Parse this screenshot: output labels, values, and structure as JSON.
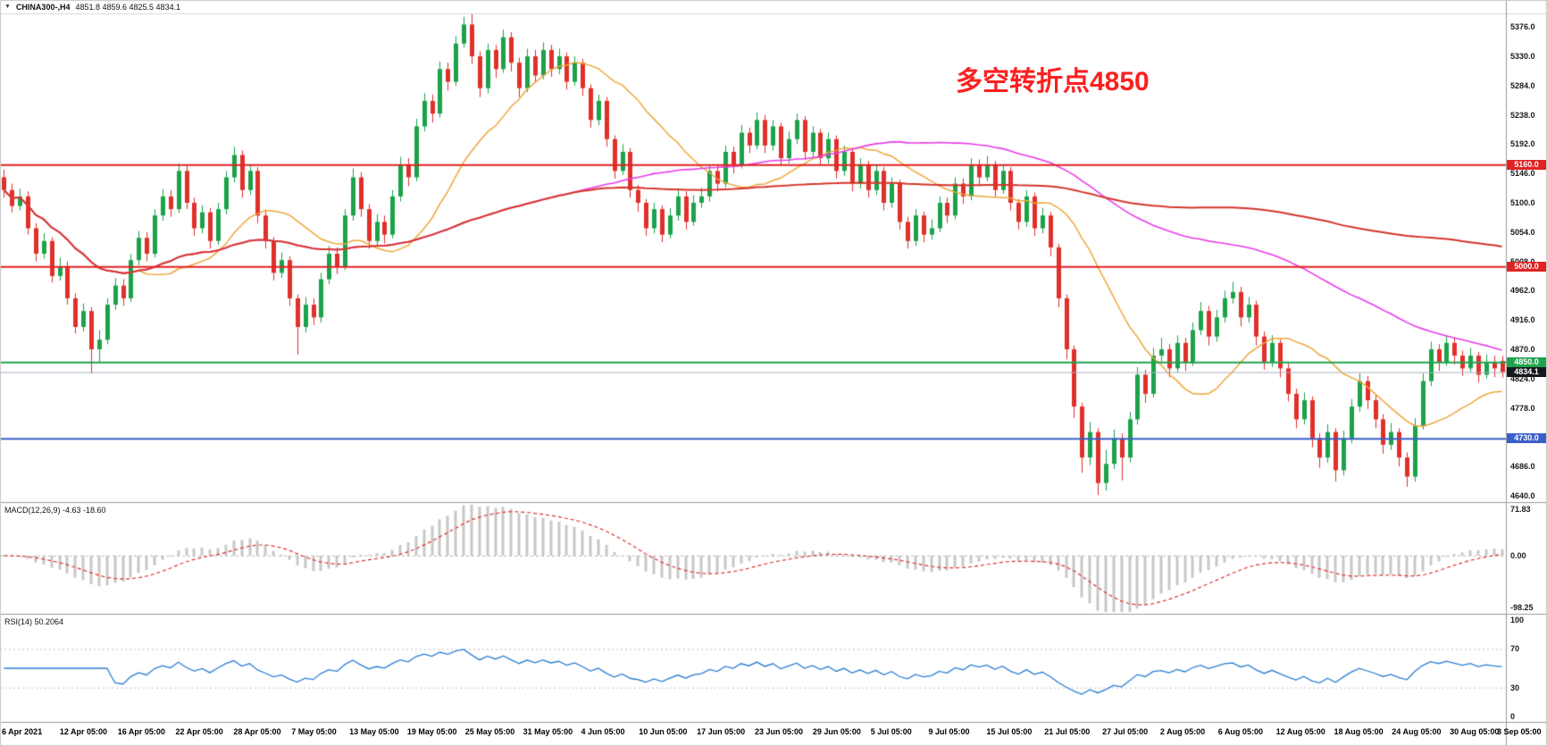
{
  "header": {
    "collapse_icon": "▼",
    "symbol": "CHINA300-,H4",
    "ohlc_text": "4851.8 4859.6 4825.5 4834.1"
  },
  "annotation": {
    "text": "多空转折点4850",
    "color": "#fb2020"
  },
  "chart_data": {
    "type": "candlestick",
    "symbol": "CHINA300-",
    "timeframe": "H4",
    "title": "CHINA300-,H4 4851.8 4859.6 4825.5 4834.1",
    "x_labels": [
      "6 Apr 2021",
      "12 Apr 05:00",
      "16 Apr 05:00",
      "22 Apr 05:00",
      "28 Apr 05:00",
      "7 May 05:00",
      "13 May 05:00",
      "19 May 05:00",
      "25 May 05:00",
      "31 May 05:00",
      "4 Jun 05:00",
      "10 Jun 05:00",
      "17 Jun 05:00",
      "23 Jun 05:00",
      "29 Jun 05:00",
      "5 Jul 05:00",
      "9 Jul 05:00",
      "15 Jul 05:00",
      "21 Jul 05:00",
      "27 Jul 05:00",
      "2 Aug 05:00",
      "6 Aug 05:00",
      "12 Aug 05:00",
      "18 Aug 05:00",
      "24 Aug 05:00",
      "30 Aug 05:00",
      "3 Sep 05:00"
    ],
    "price_axis_ticks": [
      "5376.0",
      "5330.0",
      "5284.0",
      "5238.0",
      "5192.0",
      "5146.0",
      "5100.0",
      "5054.0",
      "5008.0",
      "4962.0",
      "4916.0",
      "4870.0",
      "4824.0",
      "4778.0",
      "4732.0",
      "4686.0",
      "4640.0"
    ],
    "ylim": [
      4630,
      5396
    ],
    "grid": false,
    "up_color": "#1ca24a",
    "down_color": "#e0302a",
    "candles_ohlc": [
      [
        5140,
        5152,
        5108,
        5120
      ],
      [
        5120,
        5130,
        5085,
        5095
      ],
      [
        5095,
        5122,
        5088,
        5110
      ],
      [
        5110,
        5118,
        5050,
        5060
      ],
      [
        5060,
        5068,
        5008,
        5020
      ],
      [
        5020,
        5052,
        5012,
        5040
      ],
      [
        5040,
        5046,
        4975,
        4985
      ],
      [
        4985,
        5014,
        4978,
        5000
      ],
      [
        5000,
        5008,
        4940,
        4950
      ],
      [
        4950,
        4958,
        4895,
        4905
      ],
      [
        4905,
        4942,
        4898,
        4930
      ],
      [
        4930,
        4936,
        4832,
        4870
      ],
      [
        4870,
        4900,
        4850,
        4885
      ],
      [
        4885,
        4950,
        4878,
        4940
      ],
      [
        4940,
        4982,
        4932,
        4970
      ],
      [
        4970,
        4980,
        4938,
        4950
      ],
      [
        4950,
        5020,
        4944,
        5010
      ],
      [
        5010,
        5056,
        5002,
        5045
      ],
      [
        5045,
        5054,
        5008,
        5020
      ],
      [
        5020,
        5090,
        5014,
        5080
      ],
      [
        5080,
        5122,
        5072,
        5110
      ],
      [
        5110,
        5120,
        5078,
        5090
      ],
      [
        5090,
        5162,
        5084,
        5150
      ],
      [
        5150,
        5158,
        5090,
        5100
      ],
      [
        5100,
        5108,
        5048,
        5060
      ],
      [
        5060,
        5096,
        5052,
        5085
      ],
      [
        5085,
        5092,
        5028,
        5040
      ],
      [
        5040,
        5100,
        5034,
        5090
      ],
      [
        5090,
        5150,
        5082,
        5140
      ],
      [
        5140,
        5188,
        5132,
        5175
      ],
      [
        5175,
        5182,
        5108,
        5120
      ],
      [
        5120,
        5160,
        5112,
        5150
      ],
      [
        5150,
        5156,
        5068,
        5080
      ],
      [
        5080,
        5088,
        5028,
        5040
      ],
      [
        5040,
        5046,
        4978,
        4990
      ],
      [
        4990,
        5022,
        4982,
        5010
      ],
      [
        5010,
        5016,
        4938,
        4950
      ],
      [
        4950,
        4956,
        4862,
        4905
      ],
      [
        4905,
        4952,
        4896,
        4940
      ],
      [
        4940,
        4950,
        4908,
        4920
      ],
      [
        4920,
        4990,
        4912,
        4980
      ],
      [
        4980,
        5032,
        4972,
        5020
      ],
      [
        5020,
        5030,
        4988,
        5000
      ],
      [
        5000,
        5090,
        4994,
        5080
      ],
      [
        5080,
        5154,
        5072,
        5140
      ],
      [
        5140,
        5148,
        5078,
        5090
      ],
      [
        5090,
        5098,
        5028,
        5040
      ],
      [
        5040,
        5082,
        5032,
        5070
      ],
      [
        5070,
        5080,
        5036,
        5050
      ],
      [
        5050,
        5120,
        5044,
        5110
      ],
      [
        5110,
        5172,
        5102,
        5160
      ],
      [
        5160,
        5170,
        5126,
        5140
      ],
      [
        5140,
        5232,
        5134,
        5220
      ],
      [
        5220,
        5272,
        5212,
        5260
      ],
      [
        5260,
        5270,
        5226,
        5240
      ],
      [
        5240,
        5322,
        5234,
        5310
      ],
      [
        5310,
        5320,
        5276,
        5290
      ],
      [
        5290,
        5362,
        5284,
        5350
      ],
      [
        5350,
        5392,
        5344,
        5380
      ],
      [
        5380,
        5396,
        5318,
        5330
      ],
      [
        5330,
        5338,
        5266,
        5280
      ],
      [
        5280,
        5350,
        5272,
        5340
      ],
      [
        5340,
        5348,
        5296,
        5310
      ],
      [
        5310,
        5372,
        5304,
        5360
      ],
      [
        5360,
        5368,
        5306,
        5320
      ],
      [
        5320,
        5328,
        5266,
        5280
      ],
      [
        5280,
        5342,
        5274,
        5330
      ],
      [
        5330,
        5340,
        5288,
        5300
      ],
      [
        5300,
        5352,
        5294,
        5340
      ],
      [
        5340,
        5348,
        5298,
        5310
      ],
      [
        5310,
        5342,
        5302,
        5330
      ],
      [
        5330,
        5336,
        5278,
        5290
      ],
      [
        5290,
        5330,
        5284,
        5320
      ],
      [
        5320,
        5326,
        5268,
        5280
      ],
      [
        5280,
        5286,
        5218,
        5230
      ],
      [
        5230,
        5270,
        5222,
        5260
      ],
      [
        5260,
        5266,
        5188,
        5200
      ],
      [
        5200,
        5206,
        5138,
        5150
      ],
      [
        5150,
        5192,
        5144,
        5180
      ],
      [
        5180,
        5186,
        5108,
        5120
      ],
      [
        5120,
        5128,
        5086,
        5100
      ],
      [
        5100,
        5106,
        5048,
        5060
      ],
      [
        5060,
        5100,
        5052,
        5090
      ],
      [
        5090,
        5096,
        5038,
        5050
      ],
      [
        5050,
        5092,
        5044,
        5080
      ],
      [
        5080,
        5120,
        5072,
        5110
      ],
      [
        5110,
        5118,
        5058,
        5070
      ],
      [
        5070,
        5112,
        5064,
        5100
      ],
      [
        5100,
        5124,
        5092,
        5110
      ],
      [
        5110,
        5160,
        5102,
        5150
      ],
      [
        5150,
        5158,
        5118,
        5130
      ],
      [
        5130,
        5190,
        5124,
        5180
      ],
      [
        5180,
        5188,
        5146,
        5160
      ],
      [
        5160,
        5222,
        5154,
        5210
      ],
      [
        5210,
        5218,
        5178,
        5190
      ],
      [
        5190,
        5242,
        5184,
        5230
      ],
      [
        5230,
        5238,
        5178,
        5190
      ],
      [
        5190,
        5230,
        5182,
        5220
      ],
      [
        5220,
        5226,
        5158,
        5170
      ],
      [
        5170,
        5212,
        5162,
        5200
      ],
      [
        5200,
        5240,
        5192,
        5230
      ],
      [
        5230,
        5236,
        5168,
        5180
      ],
      [
        5180,
        5220,
        5172,
        5210
      ],
      [
        5210,
        5216,
        5158,
        5170
      ],
      [
        5170,
        5210,
        5162,
        5200
      ],
      [
        5200,
        5206,
        5138,
        5150
      ],
      [
        5150,
        5190,
        5142,
        5180
      ],
      [
        5180,
        5186,
        5118,
        5130
      ],
      [
        5130,
        5170,
        5122,
        5160
      ],
      [
        5160,
        5166,
        5108,
        5120
      ],
      [
        5120,
        5160,
        5112,
        5150
      ],
      [
        5150,
        5156,
        5088,
        5100
      ],
      [
        5100,
        5140,
        5092,
        5130
      ],
      [
        5130,
        5136,
        5058,
        5070
      ],
      [
        5070,
        5078,
        5028,
        5040
      ],
      [
        5040,
        5090,
        5032,
        5080
      ],
      [
        5080,
        5086,
        5038,
        5050
      ],
      [
        5050,
        5074,
        5042,
        5060
      ],
      [
        5060,
        5110,
        5054,
        5100
      ],
      [
        5100,
        5108,
        5068,
        5080
      ],
      [
        5080,
        5140,
        5074,
        5130
      ],
      [
        5130,
        5138,
        5098,
        5110
      ],
      [
        5110,
        5170,
        5104,
        5160
      ],
      [
        5160,
        5168,
        5128,
        5140
      ],
      [
        5140,
        5174,
        5134,
        5160
      ],
      [
        5160,
        5166,
        5108,
        5120
      ],
      [
        5120,
        5160,
        5114,
        5150
      ],
      [
        5150,
        5156,
        5088,
        5100
      ],
      [
        5100,
        5106,
        5058,
        5070
      ],
      [
        5070,
        5120,
        5062,
        5110
      ],
      [
        5110,
        5116,
        5048,
        5060
      ],
      [
        5060,
        5092,
        5052,
        5080
      ],
      [
        5080,
        5086,
        5016,
        5030
      ],
      [
        5030,
        5036,
        4936,
        4950
      ],
      [
        4950,
        4956,
        4854,
        4870
      ],
      [
        4870,
        4876,
        4762,
        4780
      ],
      [
        4780,
        4786,
        4676,
        4700
      ],
      [
        4700,
        4756,
        4688,
        4740
      ],
      [
        4740,
        4746,
        4641,
        4660
      ],
      [
        4660,
        4712,
        4648,
        4690
      ],
      [
        4690,
        4744,
        4682,
        4730
      ],
      [
        4730,
        4738,
        4664,
        4700
      ],
      [
        4700,
        4772,
        4692,
        4760
      ],
      [
        4760,
        4842,
        4752,
        4830
      ],
      [
        4830,
        4838,
        4786,
        4800
      ],
      [
        4800,
        4872,
        4794,
        4860
      ],
      [
        4860,
        4888,
        4850,
        4870
      ],
      [
        4870,
        4878,
        4826,
        4840
      ],
      [
        4840,
        4892,
        4834,
        4880
      ],
      [
        4880,
        4888,
        4836,
        4850
      ],
      [
        4850,
        4912,
        4844,
        4900
      ],
      [
        4900,
        4944,
        4892,
        4930
      ],
      [
        4930,
        4938,
        4876,
        4890
      ],
      [
        4890,
        4932,
        4882,
        4920
      ],
      [
        4920,
        4962,
        4912,
        4950
      ],
      [
        4950,
        4976,
        4942,
        4960
      ],
      [
        4960,
        4968,
        4906,
        4920
      ],
      [
        4920,
        4952,
        4912,
        4940
      ],
      [
        4940,
        4946,
        4876,
        4890
      ],
      [
        4890,
        4898,
        4838,
        4850
      ],
      [
        4850,
        4892,
        4842,
        4880
      ],
      [
        4880,
        4886,
        4826,
        4840
      ],
      [
        4840,
        4848,
        4788,
        4800
      ],
      [
        4800,
        4808,
        4746,
        4760
      ],
      [
        4760,
        4802,
        4752,
        4790
      ],
      [
        4790,
        4796,
        4716,
        4730
      ],
      [
        4730,
        4738,
        4684,
        4700
      ],
      [
        4700,
        4752,
        4692,
        4740
      ],
      [
        4740,
        4746,
        4662,
        4680
      ],
      [
        4680,
        4742,
        4672,
        4730
      ],
      [
        4730,
        4792,
        4722,
        4780
      ],
      [
        4780,
        4832,
        4772,
        4820
      ],
      [
        4820,
        4828,
        4776,
        4790
      ],
      [
        4790,
        4798,
        4746,
        4760
      ],
      [
        4760,
        4768,
        4706,
        4720
      ],
      [
        4720,
        4754,
        4712,
        4740
      ],
      [
        4740,
        4746,
        4686,
        4700
      ],
      [
        4700,
        4708,
        4654,
        4670
      ],
      [
        4670,
        4762,
        4662,
        4750
      ],
      [
        4750,
        4832,
        4744,
        4820
      ],
      [
        4820,
        4882,
        4812,
        4870
      ],
      [
        4870,
        4878,
        4836,
        4850
      ],
      [
        4850,
        4892,
        4844,
        4880
      ],
      [
        4880,
        4888,
        4846,
        4860
      ],
      [
        4860,
        4868,
        4828,
        4840
      ],
      [
        4840,
        4872,
        4834,
        4860
      ],
      [
        4860,
        4866,
        4818,
        4830
      ],
      [
        4830,
        4862,
        4824,
        4850
      ],
      [
        4850,
        4860,
        4826,
        4840
      ],
      [
        4851.8,
        4859.6,
        4825.5,
        4834.1
      ]
    ],
    "moving_averages": [
      {
        "name": "ma-fast",
        "period": 18,
        "color": "#eea73b",
        "width": 1.5
      },
      {
        "name": "ma-medium",
        "period": 70,
        "color": "#e83ce8",
        "width": 1.6
      },
      {
        "name": "ma-slow",
        "period": 140,
        "color": "#d6352b",
        "width": 2
      }
    ],
    "hlines": [
      {
        "value": 5160.0,
        "label": "5160.0",
        "color": "#e02222",
        "width": 2,
        "tag_bg": "#e02222"
      },
      {
        "value": 5000.0,
        "label": "5000.0",
        "color": "#e02222",
        "width": 2,
        "tag_bg": "#e02222"
      },
      {
        "value": 4850.0,
        "label": "4850.0",
        "color": "#23a24d",
        "width": 2,
        "tag_bg": "#23a24d"
      },
      {
        "value": 4730.0,
        "label": "4730.0",
        "color": "#3a5fc8",
        "width": 2,
        "tag_bg": "#3a5fc8"
      }
    ],
    "current_price": 4834.1,
    "current_price_line_color": "#aab4c2",
    "current_price_tag_bg": "#15181e",
    "macd": {
      "label": "MACD(12,26,9) -4.63 -18.60",
      "params": [
        12,
        26,
        9
      ],
      "values_shown": [
        -4.63,
        -18.6
      ],
      "axis_ticks": [
        "71.83",
        "0.00",
        "-98.25"
      ],
      "hist_color": "#c8c8c8",
      "signal_color": "#e03030"
    },
    "rsi": {
      "label": "RSI(14) 50.2064",
      "period": 14,
      "value_shown": 50.2064,
      "axis_ticks": [
        "100",
        "70",
        "30",
        "0"
      ],
      "levels": [
        70,
        30
      ],
      "line_color": "#2b7fd4",
      "level_color": "#c0c0c0"
    }
  }
}
